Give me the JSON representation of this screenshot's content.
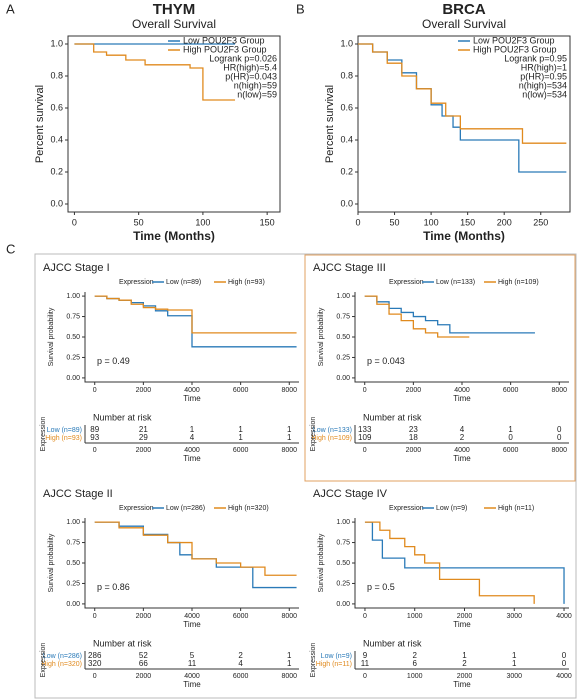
{
  "figure": {
    "panel_labels": [
      "A",
      "B",
      "C"
    ]
  },
  "chart_data": [
    {
      "type": "step",
      "title": "THYM",
      "subtitle": "Overall Survival",
      "xlabel": "Time (Months)",
      "ylabel": "Percent survival",
      "xlim": [
        -5,
        160
      ],
      "ylim": [
        -0.05,
        1.05
      ],
      "xticks": [
        0,
        50,
        100,
        150
      ],
      "yticks": [
        {
          "value": 0,
          "label": "0.0"
        },
        {
          "value": 0.2,
          "label": "0.2"
        },
        {
          "value": 0.4,
          "label": "0.4"
        },
        {
          "value": 0.6,
          "label": "0.6"
        },
        {
          "value": 0.8,
          "label": "0.8"
        },
        {
          "value": 1,
          "label": "1.0"
        }
      ],
      "series": [
        {
          "name": "Low POU2F3 Group",
          "color": "#2a7ab8",
          "x": [
            0,
            125
          ],
          "values": [
            1,
            1
          ]
        },
        {
          "name": "High POU2F3 Group",
          "color": "#e08a1e",
          "x": [
            0,
            15,
            25,
            40,
            55,
            90,
            100,
            125
          ],
          "values": [
            1,
            0.95,
            0.93,
            0.9,
            0.87,
            0.85,
            0.65,
            0.65
          ]
        }
      ],
      "annotations": [
        "Logrank p=0.026",
        "HR(high)=5.4",
        "p(HR)=0.043",
        "n(high)=59",
        "n(low)=59"
      ]
    },
    {
      "type": "step",
      "title": "BRCA",
      "subtitle": "Overall Survival",
      "xlabel": "Time (Months)",
      "ylabel": "Percent survival",
      "xlim": [
        0,
        290
      ],
      "ylim": [
        -0.05,
        1.05
      ],
      "xticks": [
        0,
        50,
        100,
        150,
        200,
        250
      ],
      "yticks": [
        {
          "value": 0,
          "label": "0.0"
        },
        {
          "value": 0.2,
          "label": "0.2"
        },
        {
          "value": 0.4,
          "label": "0.4"
        },
        {
          "value": 0.6,
          "label": "0.6"
        },
        {
          "value": 0.8,
          "label": "0.8"
        },
        {
          "value": 1,
          "label": "1.0"
        }
      ],
      "series": [
        {
          "name": "Low POU2F3 Group",
          "color": "#2a7ab8",
          "x": [
            0,
            20,
            40,
            60,
            80,
            100,
            115,
            130,
            140,
            220,
            285
          ],
          "values": [
            1,
            0.95,
            0.9,
            0.82,
            0.72,
            0.62,
            0.55,
            0.48,
            0.4,
            0.2,
            0.2
          ]
        },
        {
          "name": "High POU2F3 Group",
          "color": "#e08a1e",
          "x": [
            0,
            20,
            40,
            60,
            80,
            100,
            120,
            140,
            225,
            285
          ],
          "values": [
            1,
            0.95,
            0.88,
            0.8,
            0.72,
            0.63,
            0.55,
            0.47,
            0.38,
            0.38
          ]
        }
      ],
      "annotations": [
        "Logrank p=0.95",
        "HR(high)=1",
        "p(HR)=0.95",
        "n(high)=534",
        "n(low)=534"
      ]
    },
    {
      "type": "step",
      "title": "AJCC Stage I",
      "legend_title": "Expression",
      "xlabel": "Time",
      "ylabel": "Survival probability",
      "xlim": [
        -400,
        8400
      ],
      "ylim": [
        -0.05,
        1.05
      ],
      "xticks": [
        0,
        2000,
        4000,
        6000,
        8000
      ],
      "yticks": [
        {
          "value": 0,
          "label": "0.00"
        },
        {
          "value": 0.25,
          "label": "0.25"
        },
        {
          "value": 0.5,
          "label": "0.50"
        },
        {
          "value": 0.75,
          "label": "0.75"
        },
        {
          "value": 1,
          "label": "1.00"
        }
      ],
      "series": [
        {
          "name": "Low (n=89)",
          "color": "#2a7ab8",
          "x": [
            0,
            500,
            1000,
            1500,
            2000,
            2500,
            3000,
            4000,
            8300
          ],
          "values": [
            1,
            0.97,
            0.95,
            0.92,
            0.88,
            0.82,
            0.76,
            0.38,
            0.38
          ]
        },
        {
          "name": "High (n=93)",
          "color": "#e08a1e",
          "x": [
            0,
            500,
            1000,
            1500,
            2000,
            2500,
            3000,
            4000,
            8300
          ],
          "values": [
            1,
            0.97,
            0.95,
            0.9,
            0.86,
            0.84,
            0.83,
            0.55,
            0.55
          ]
        }
      ],
      "annotation": "p = 0.49",
      "risk_table": {
        "title": "Number at risk",
        "ylabel": "Expression",
        "xlabel": "Time",
        "rows": [
          [
            89,
            21,
            1,
            1,
            1
          ],
          [
            93,
            29,
            4,
            1,
            1
          ]
        ]
      }
    },
    {
      "type": "step",
      "title": "AJCC Stage III",
      "legend_title": "Expression",
      "xlabel": "Time",
      "ylabel": "Survival probability",
      "xlim": [
        -400,
        8400
      ],
      "ylim": [
        -0.05,
        1.05
      ],
      "xticks": [
        0,
        2000,
        4000,
        6000,
        8000
      ],
      "yticks": [
        {
          "value": 0,
          "label": "0.00"
        },
        {
          "value": 0.25,
          "label": "0.25"
        },
        {
          "value": 0.5,
          "label": "0.50"
        },
        {
          "value": 0.75,
          "label": "0.75"
        },
        {
          "value": 1,
          "label": "1.00"
        }
      ],
      "series": [
        {
          "name": "Low (n=133)",
          "color": "#2a7ab8",
          "x": [
            0,
            500,
            1000,
            1500,
            2000,
            2500,
            3000,
            3500,
            7000
          ],
          "values": [
            1,
            0.93,
            0.85,
            0.8,
            0.75,
            0.7,
            0.65,
            0.55,
            0.55
          ]
        },
        {
          "name": "High (n=109)",
          "color": "#e08a1e",
          "x": [
            0,
            500,
            1000,
            1500,
            2000,
            2500,
            3000,
            4300
          ],
          "values": [
            1,
            0.9,
            0.78,
            0.7,
            0.6,
            0.55,
            0.5,
            0.5
          ]
        }
      ],
      "annotation": "p = 0.043",
      "risk_table": {
        "title": "Number at risk",
        "ylabel": "Expression",
        "xlabel": "Time",
        "rows": [
          [
            133,
            23,
            4,
            1,
            0
          ],
          [
            109,
            18,
            2,
            0,
            0
          ]
        ]
      }
    },
    {
      "type": "step",
      "title": "AJCC Stage II",
      "legend_title": "Expression",
      "xlabel": "Time",
      "ylabel": "Survival probability",
      "xlim": [
        -400,
        8400
      ],
      "ylim": [
        -0.05,
        1.05
      ],
      "xticks": [
        0,
        2000,
        4000,
        6000,
        8000
      ],
      "yticks": [
        {
          "value": 0,
          "label": "0.00"
        },
        {
          "value": 0.25,
          "label": "0.25"
        },
        {
          "value": 0.5,
          "label": "0.50"
        },
        {
          "value": 0.75,
          "label": "0.75"
        },
        {
          "value": 1,
          "label": "1.00"
        }
      ],
      "series": [
        {
          "name": "Low (n=286)",
          "color": "#2a7ab8",
          "x": [
            0,
            1000,
            2000,
            3000,
            3500,
            4000,
            5000,
            6500,
            8300
          ],
          "values": [
            1,
            0.95,
            0.85,
            0.75,
            0.6,
            0.55,
            0.45,
            0.2,
            0.2
          ]
        },
        {
          "name": "High (n=320)",
          "color": "#e08a1e",
          "x": [
            0,
            1000,
            2000,
            3000,
            4000,
            5000,
            6000,
            7000,
            8300
          ],
          "values": [
            1,
            0.93,
            0.84,
            0.75,
            0.55,
            0.5,
            0.45,
            0.35,
            0.35
          ]
        }
      ],
      "annotation": "p = 0.86",
      "risk_table": {
        "title": "Number at risk",
        "ylabel": "Expression",
        "xlabel": "Time",
        "rows": [
          [
            286,
            52,
            5,
            2,
            1
          ],
          [
            320,
            66,
            11,
            4,
            1
          ]
        ]
      }
    },
    {
      "type": "step",
      "title": "AJCC Stage IV",
      "legend_title": "Expression",
      "xlabel": "Time",
      "ylabel": "Survival probability",
      "xlim": [
        -200,
        4100
      ],
      "ylim": [
        -0.05,
        1.05
      ],
      "xticks": [
        0,
        1000,
        2000,
        3000,
        4000
      ],
      "yticks": [
        {
          "value": 0,
          "label": "0.00"
        },
        {
          "value": 0.25,
          "label": "0.25"
        },
        {
          "value": 0.5,
          "label": "0.50"
        },
        {
          "value": 0.75,
          "label": "0.75"
        },
        {
          "value": 1,
          "label": "1.00"
        }
      ],
      "series": [
        {
          "name": "Low (n=9)",
          "color": "#2a7ab8",
          "x": [
            0,
            150,
            350,
            800,
            4000
          ],
          "values": [
            1,
            0.78,
            0.56,
            0.44,
            0
          ]
        },
        {
          "name": "High (n=11)",
          "color": "#e08a1e",
          "x": [
            0,
            300,
            500,
            800,
            1000,
            1200,
            1500,
            2300,
            3400
          ],
          "values": [
            1,
            0.9,
            0.8,
            0.7,
            0.6,
            0.5,
            0.3,
            0.1,
            0
          ]
        }
      ],
      "annotation": "p = 0.5",
      "risk_table": {
        "title": "Number at risk",
        "ylabel": "Expression",
        "xlabel": "Time",
        "rows": [
          [
            9,
            2,
            1,
            1,
            0
          ],
          [
            11,
            6,
            2,
            1,
            0
          ]
        ]
      }
    }
  ]
}
